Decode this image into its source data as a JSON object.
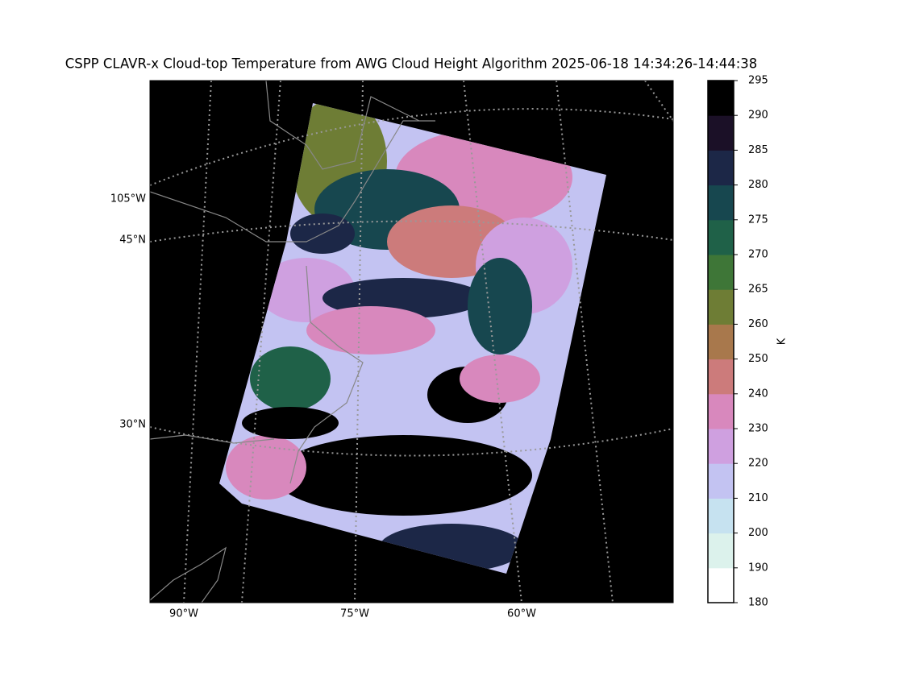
{
  "title": "CSPP CLAVR-x Cloud-top Temperature from AWG Cloud Height Algorithm 2025-06-18 14:34:26-14:44:38",
  "map": {
    "lon_labels": [
      "90°W",
      "75°W",
      "60°W"
    ],
    "lat_labels": [
      "105°W",
      "45°N",
      "30°N"
    ]
  },
  "colorbar": {
    "label": "K",
    "ticks": [
      180,
      190,
      200,
      210,
      220,
      230,
      240,
      250,
      260,
      265,
      270,
      275,
      280,
      285,
      290,
      295
    ],
    "colors": [
      "#ffffff",
      "#dcf2ec",
      "#c6e2f0",
      "#c3c3f2",
      "#cfa0e0",
      "#d888bd",
      "#cc7b7b",
      "#a8784c",
      "#6e7d35",
      "#3e7637",
      "#1f6148",
      "#17474f",
      "#1c2747",
      "#1b1027",
      "#000000"
    ]
  }
}
